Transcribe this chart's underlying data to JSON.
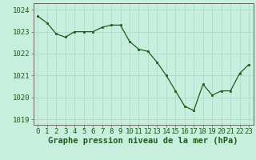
{
  "x": [
    0,
    1,
    2,
    3,
    4,
    5,
    6,
    7,
    8,
    9,
    10,
    11,
    12,
    13,
    14,
    15,
    16,
    17,
    18,
    19,
    20,
    21,
    22,
    23
  ],
  "y": [
    1023.7,
    1023.4,
    1022.9,
    1022.75,
    1023.0,
    1023.0,
    1023.0,
    1023.2,
    1023.3,
    1023.3,
    1022.55,
    1022.2,
    1022.1,
    1021.6,
    1021.0,
    1020.3,
    1019.6,
    1019.4,
    1020.6,
    1020.1,
    1020.3,
    1020.3,
    1021.1,
    1021.5
  ],
  "line_color": "#1a5e1a",
  "marker_color": "#1a5e1a",
  "bg_color": "#c8eedd",
  "grid_color": "#a8d8c8",
  "xlabel": "Graphe pression niveau de la mer (hPa)",
  "ylim": [
    1018.75,
    1024.3
  ],
  "yticks": [
    1019,
    1020,
    1021,
    1022,
    1023,
    1024
  ],
  "xticks": [
    0,
    1,
    2,
    3,
    4,
    5,
    6,
    7,
    8,
    9,
    10,
    11,
    12,
    13,
    14,
    15,
    16,
    17,
    18,
    19,
    20,
    21,
    22,
    23
  ],
  "xlabel_fontsize": 7.5,
  "tick_fontsize": 6.5,
  "xlabel_color": "#1a5e1a",
  "tick_color": "#1a5e1a",
  "spine_color": "#666666"
}
